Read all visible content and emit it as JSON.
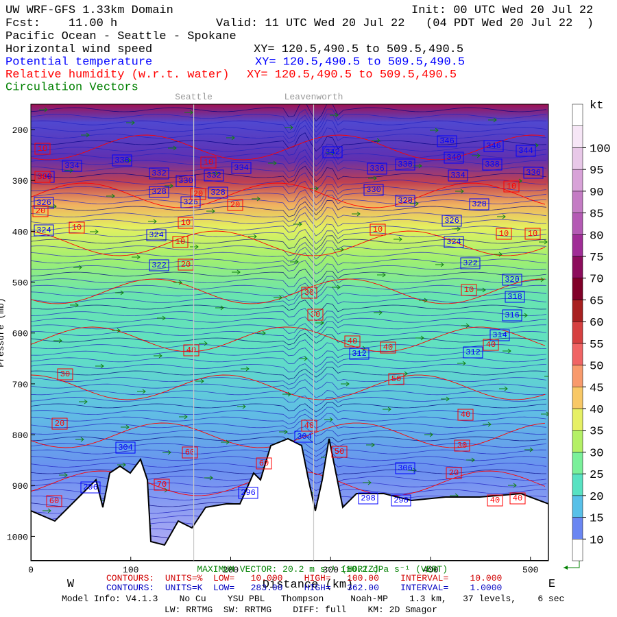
{
  "header": {
    "title": "UW WRF-GFS 1.33km Domain",
    "init": "Init: 00 UTC Wed 20 Jul 22",
    "fcst": "Fcst:    11.00 h",
    "valid": "Valid: 11 UTC Wed 20 Jul 22   (04 PDT Wed 20 Jul 22  )",
    "route": "Pacific Ocean - Seattle - Spokane",
    "fields": [
      {
        "name": "Horizontal wind speed",
        "xy": "XY= 120.5,490.5 to 509.5,490.5",
        "color": "#000000"
      },
      {
        "name": "Potential temperature",
        "xy": "XY= 120.5,490.5 to 509.5,490.5",
        "color": "#0000ff"
      },
      {
        "name": "Relative humidity (w.r.t. water)",
        "xy": "XY= 120.5,490.5 to 509.5,490.5",
        "color": "#ff0000"
      },
      {
        "name": "Circulation Vectors",
        "color": "#008000"
      }
    ]
  },
  "chart_data": {
    "type": "cross-section",
    "xlabel": "Distance (km)",
    "ylabel": "Pressure (mb)",
    "xlim": [
      0,
      518
    ],
    "ylim": [
      1048,
      150
    ],
    "xticks": [
      0,
      100,
      200,
      300,
      400,
      500
    ],
    "yticks": [
      200,
      300,
      400,
      500,
      600,
      700,
      800,
      900,
      1000
    ],
    "west": "W",
    "east": "E",
    "locations": [
      {
        "name": "Seattle",
        "x": 163
      },
      {
        "name": "Leavenworth",
        "x": 283
      }
    ],
    "colorbar": {
      "unit": "kt",
      "levels": [
        10,
        15,
        20,
        25,
        30,
        35,
        40,
        45,
        50,
        55,
        60,
        65,
        70,
        75,
        80,
        85,
        90,
        95,
        100
      ],
      "colors": [
        "#ffffff",
        "#6a86f2",
        "#58c0e8",
        "#58e2c2",
        "#7af09a",
        "#b4f066",
        "#e6f064",
        "#f8c866",
        "#f89a6c",
        "#f06464",
        "#d64040",
        "#a82020",
        "#800028",
        "#8c0c5c",
        "#a02c96",
        "#b45ab4",
        "#c47cc4",
        "#d8a2d8",
        "#e8c8e8",
        "#f6e6f6",
        "#ffffff"
      ]
    },
    "theta_color": "#0000ff",
    "rh_color": "#ff0000",
    "theta_labels": [
      346,
      346,
      344,
      342,
      340,
      334,
      336,
      332,
      332,
      334,
      336,
      338,
      338,
      336,
      330,
      330,
      328,
      328,
      334,
      330,
      328,
      326,
      326,
      328,
      326,
      324,
      324,
      324,
      322,
      322,
      320,
      318,
      316,
      314,
      312,
      312,
      306,
      304,
      296,
      296,
      298,
      298,
      304
    ],
    "rh_labels": [
      10,
      30,
      20,
      10,
      10,
      20,
      20,
      10,
      10,
      20,
      10,
      10,
      10,
      10,
      10,
      40,
      30,
      20,
      30,
      30,
      40,
      40,
      40,
      50,
      40,
      30,
      20,
      60,
      60,
      70,
      60,
      40,
      50,
      40,
      40
    ]
  },
  "footer": {
    "max_vector_h": "MAXIMUM VECTOR: 20.2 m s⁻¹ (HORIZ)",
    "max_vector_v": "110.2 dPa s⁻¹ (VERT)",
    "rh_contours": "CONTOURS:  UNITS=%  LOW=   10.000    HIGH=   100.00    INTERVAL=    10.000",
    "theta_contours": "CONTOURS:  UNITS=K  LOW=   283.00    HIGH=   362.00    INTERVAL=    1.0000",
    "model_info": "Model Info: V4.1.3    No Cu    YSU PBL   Thompson     Noah-MP    1.3 km,   37 levels,    6 sec",
    "physics": "LW: RRTMG  SW: RRTMG    DIFF: full    KM: 2D Smagor"
  }
}
